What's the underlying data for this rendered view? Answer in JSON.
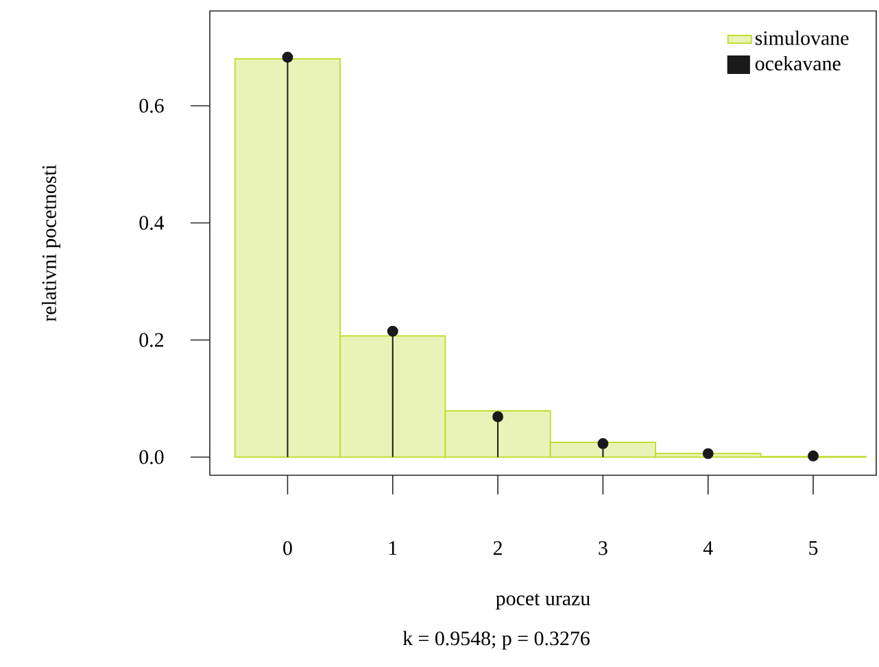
{
  "chart_data": {
    "type": "bar",
    "xlabel": "pocet urazu",
    "ylabel": "relativni pocetnosti",
    "categories": [
      "0",
      "1",
      "2",
      "3",
      "4",
      "5"
    ],
    "series": [
      {
        "name": "simulovane",
        "color": "#c3dc32",
        "values": [
          0.68,
          0.207,
          0.079,
          0.025,
          0.006,
          0.001
        ]
      },
      {
        "name": "ocekavane",
        "type": "lollipop",
        "marker": "circle",
        "color": "#1a1a1a",
        "values": [
          0.683,
          0.215,
          0.069,
          0.023,
          0.006,
          0.002
        ]
      }
    ],
    "ylim": [
      -0.031,
      0.762
    ],
    "yticks": [
      {
        "value": 0,
        "label": "0.0"
      },
      {
        "value": 0.2,
        "label": "0.2"
      },
      {
        "value": 0.4,
        "label": "0.4"
      },
      {
        "value": 0.6,
        "label": "0.6"
      }
    ],
    "legend": "top right",
    "annotations": [
      "k = 0.9548; p = 0.3276"
    ]
  }
}
